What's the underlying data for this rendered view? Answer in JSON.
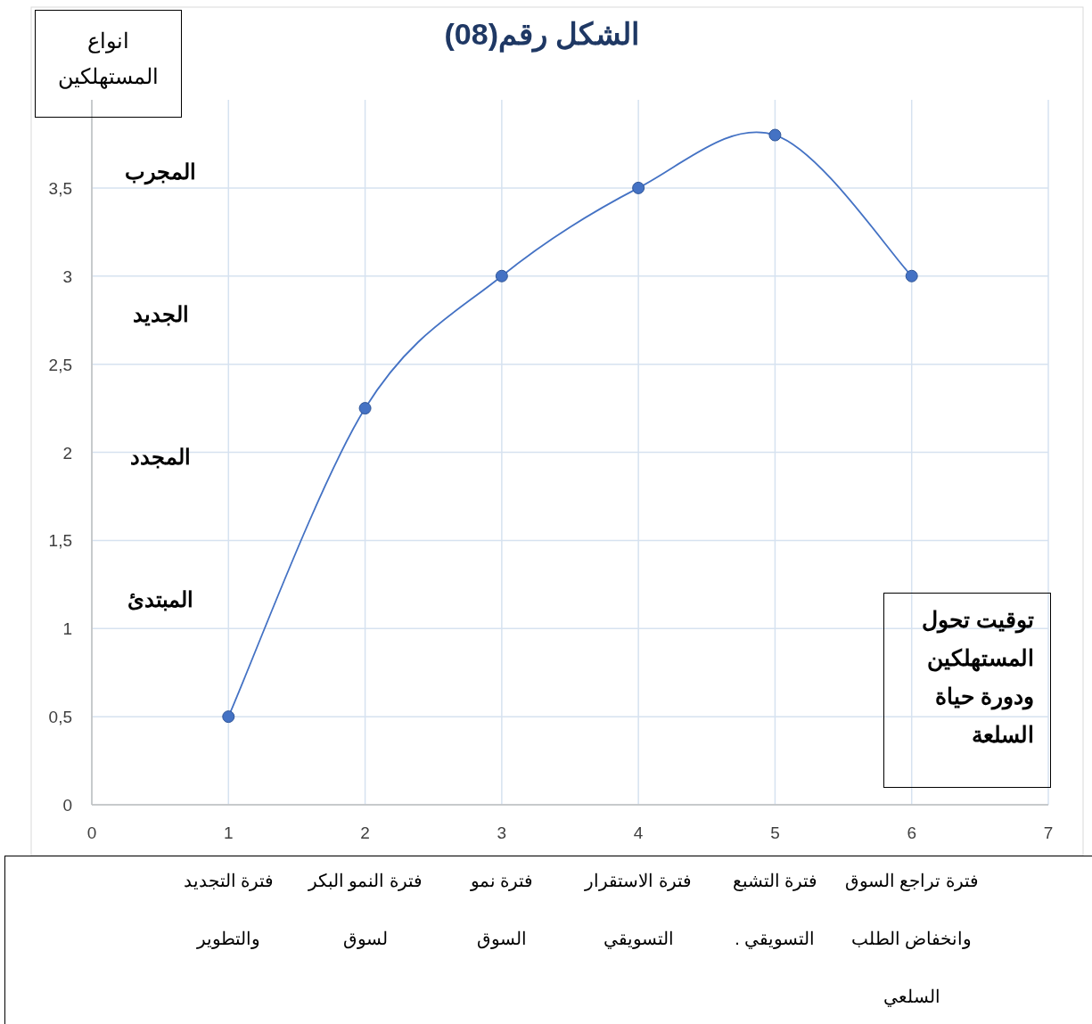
{
  "chart_data": {
    "type": "line",
    "title": "الشكل رقم(08)",
    "ylabel": "انواع المستهلكين",
    "xlabel": "توقيت تحول المستهلكين ودورة حياة السلعة",
    "x": [
      1,
      2,
      3,
      4,
      5,
      6
    ],
    "series": [
      {
        "color": "#4472c4",
        "values": [
          0.5,
          2.25,
          3,
          3.5,
          3.8,
          3
        ]
      }
    ],
    "xlim": [
      0,
      7
    ],
    "xticks": [
      0,
      1,
      2,
      3,
      4,
      5,
      6,
      7
    ],
    "ylim": [
      0,
      4
    ],
    "yticks": [
      0,
      {
        "value": 0.5,
        "label": "0,5"
      },
      1,
      {
        "value": 1.5,
        "label": "1,5"
      },
      2,
      {
        "value": 2.5,
        "label": "2,5"
      },
      3,
      {
        "value": 3.5,
        "label": "3,5"
      }
    ],
    "grid": true,
    "marker": "circle",
    "annotations": [
      "المجرب",
      "الجديد",
      "المجدد",
      "المبتدئ",
      "فترة التجديد والتطوير",
      "فترة النمو البكر لسوق",
      "فترة نمو السوق",
      "فترة الاستقرار التسويقي",
      "فترة التشبع التسويقي .",
      "فترة تراجع السوق وانخفاض الطلب السلعي"
    ]
  }
}
